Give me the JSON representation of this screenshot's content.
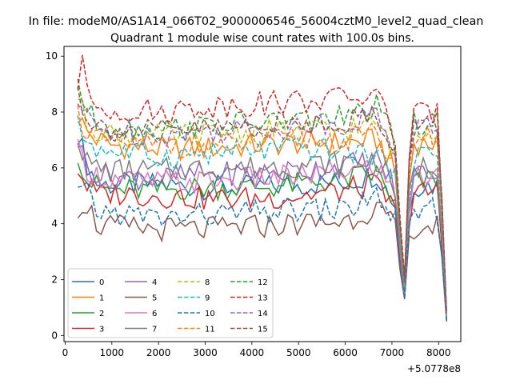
{
  "chart_data": {
    "type": "line",
    "suptitle": "In file: modeM0/AS1A14_066T02_9000006546_56004cztM0_level2_quad_clean",
    "title": "Quadrant 1 module wise count rates with 100.0s bins.",
    "xlabel": "",
    "ylabel": "",
    "x_offset_label": "+5.0778e8",
    "xlim": [
      -25,
      8475
    ],
    "ylim": [
      -0.22,
      10.35
    ],
    "xticks": [
      0,
      1000,
      2000,
      3000,
      4000,
      5000,
      6000,
      7000,
      8000
    ],
    "yticks": [
      0,
      2,
      4,
      6,
      8,
      10
    ],
    "xtick_labels": [
      "0",
      "1000",
      "2000",
      "3000",
      "4000",
      "5000",
      "6000",
      "7000",
      "8000"
    ],
    "ytick_labels": [
      "0",
      "2",
      "4",
      "6",
      "8",
      "10"
    ],
    "grid": false,
    "legend": {
      "placement": "lower-left",
      "ncol": 4
    },
    "x_start": 270,
    "bin_step": 100,
    "series": [
      {
        "name": "0",
        "color": "#1f77b4",
        "dash": "solid",
        "anchors": [
          [
            270,
            7.3
          ],
          [
            450,
            6.2
          ],
          [
            700,
            5.4
          ],
          [
            1000,
            5.4
          ],
          [
            2000,
            5.4
          ],
          [
            3000,
            5.3
          ],
          [
            4000,
            5.3
          ],
          [
            5000,
            5.4
          ],
          [
            6000,
            5.5
          ],
          [
            6700,
            5.8
          ],
          [
            6950,
            5.0
          ],
          [
            7050,
            5.0
          ],
          [
            7200,
            2.5
          ],
          [
            7280,
            1.3
          ],
          [
            7400,
            5.4
          ],
          [
            8000,
            5.4
          ],
          [
            8180,
            0.3
          ]
        ]
      },
      {
        "name": "1",
        "color": "#ff7f0e",
        "dash": "solid",
        "anchors": [
          [
            270,
            7.9
          ],
          [
            450,
            7.3
          ],
          [
            700,
            7.0
          ],
          [
            1000,
            6.8
          ],
          [
            2000,
            6.7
          ],
          [
            3000,
            6.7
          ],
          [
            4000,
            6.8
          ],
          [
            5000,
            6.9
          ],
          [
            6000,
            6.9
          ],
          [
            6700,
            7.0
          ],
          [
            6950,
            6.2
          ],
          [
            7050,
            6.2
          ],
          [
            7200,
            2.9
          ],
          [
            7280,
            1.5
          ],
          [
            7400,
            6.9
          ],
          [
            8000,
            6.9
          ],
          [
            8180,
            0.35
          ]
        ]
      },
      {
        "name": "2",
        "color": "#2ca02c",
        "dash": "solid",
        "anchors": [
          [
            270,
            6.6
          ],
          [
            450,
            5.6
          ],
          [
            700,
            5.3
          ],
          [
            1000,
            5.2
          ],
          [
            2000,
            5.2
          ],
          [
            3000,
            5.3
          ],
          [
            4000,
            5.3
          ],
          [
            5000,
            5.4
          ],
          [
            6000,
            5.6
          ],
          [
            6700,
            5.8
          ],
          [
            6950,
            5.0
          ],
          [
            7050,
            5.0
          ],
          [
            7200,
            2.5
          ],
          [
            7280,
            1.3
          ],
          [
            7400,
            5.4
          ],
          [
            8000,
            5.6
          ],
          [
            8180,
            0.3
          ]
        ]
      },
      {
        "name": "3",
        "color": "#d62728",
        "dash": "solid",
        "anchors": [
          [
            270,
            6.0
          ],
          [
            450,
            5.4
          ],
          [
            700,
            5.0
          ],
          [
            1000,
            5.1
          ],
          [
            2000,
            5.0
          ],
          [
            3000,
            4.9
          ],
          [
            4000,
            4.9
          ],
          [
            5000,
            5.0
          ],
          [
            6000,
            5.2
          ],
          [
            6700,
            5.4
          ],
          [
            6950,
            4.7
          ],
          [
            7050,
            4.7
          ],
          [
            7200,
            2.3
          ],
          [
            7280,
            1.2
          ],
          [
            7400,
            5.0
          ],
          [
            8000,
            5.2
          ],
          [
            8180,
            0.3
          ]
        ]
      },
      {
        "name": "4",
        "color": "#9467bd",
        "dash": "solid",
        "anchors": [
          [
            270,
            7.0
          ],
          [
            450,
            6.1
          ],
          [
            700,
            5.8
          ],
          [
            1000,
            5.7
          ],
          [
            2000,
            5.6
          ],
          [
            3000,
            5.8
          ],
          [
            4000,
            5.8
          ],
          [
            5000,
            5.9
          ],
          [
            6000,
            6.1
          ],
          [
            6700,
            6.3
          ],
          [
            6950,
            5.6
          ],
          [
            7050,
            5.6
          ],
          [
            7200,
            2.7
          ],
          [
            7280,
            1.4
          ],
          [
            7400,
            5.8
          ],
          [
            8000,
            5.9
          ],
          [
            8180,
            0.3
          ]
        ]
      },
      {
        "name": "5",
        "color": "#8c564b",
        "dash": "solid",
        "anchors": [
          [
            270,
            4.6
          ],
          [
            450,
            4.8
          ],
          [
            700,
            3.9
          ],
          [
            1000,
            3.9
          ],
          [
            2000,
            3.8
          ],
          [
            3000,
            3.8
          ],
          [
            4000,
            3.9
          ],
          [
            5000,
            4.0
          ],
          [
            6000,
            4.1
          ],
          [
            6700,
            4.6
          ],
          [
            6950,
            4.0
          ],
          [
            7050,
            4.0
          ],
          [
            7200,
            2.0
          ],
          [
            7280,
            1.2
          ],
          [
            7400,
            3.9
          ],
          [
            8000,
            3.9
          ],
          [
            8180,
            0.3
          ]
        ]
      },
      {
        "name": "6",
        "color": "#e377c2",
        "dash": "solid",
        "anchors": [
          [
            270,
            6.6
          ],
          [
            450,
            6.0
          ],
          [
            700,
            5.7
          ],
          [
            1000,
            5.6
          ],
          [
            2000,
            5.5
          ],
          [
            3000,
            5.5
          ],
          [
            4000,
            5.6
          ],
          [
            5000,
            5.7
          ],
          [
            6000,
            5.9
          ],
          [
            6700,
            6.0
          ],
          [
            6950,
            5.3
          ],
          [
            7050,
            5.3
          ],
          [
            7200,
            2.6
          ],
          [
            7280,
            1.3
          ],
          [
            7400,
            5.6
          ],
          [
            8000,
            5.7
          ],
          [
            8180,
            0.3
          ]
        ]
      },
      {
        "name": "7",
        "color": "#7f7f7f",
        "dash": "solid",
        "anchors": [
          [
            270,
            7.2
          ],
          [
            450,
            6.2
          ],
          [
            700,
            6.0
          ],
          [
            1000,
            5.9
          ],
          [
            2000,
            5.9
          ],
          [
            3000,
            6.0
          ],
          [
            4000,
            6.0
          ],
          [
            5000,
            6.1
          ],
          [
            6000,
            6.2
          ],
          [
            6700,
            6.3
          ],
          [
            6950,
            5.6
          ],
          [
            7050,
            5.6
          ],
          [
            7200,
            2.7
          ],
          [
            7280,
            1.4
          ],
          [
            7400,
            6.0
          ],
          [
            8000,
            6.1
          ],
          [
            8180,
            0.3
          ]
        ]
      },
      {
        "name": "8",
        "color": "#bcbd22",
        "dash": "dashed",
        "anchors": [
          [
            270,
            8.6
          ],
          [
            450,
            7.6
          ],
          [
            700,
            7.4
          ],
          [
            1000,
            7.2
          ],
          [
            2000,
            7.1
          ],
          [
            3000,
            7.2
          ],
          [
            4000,
            7.3
          ],
          [
            5000,
            7.3
          ],
          [
            6000,
            7.4
          ],
          [
            6700,
            7.6
          ],
          [
            6950,
            6.8
          ],
          [
            7050,
            6.8
          ],
          [
            7200,
            3.2
          ],
          [
            7280,
            1.7
          ],
          [
            7400,
            7.4
          ],
          [
            8000,
            7.4
          ],
          [
            8180,
            0.4
          ]
        ]
      },
      {
        "name": "9",
        "color": "#17becf",
        "dash": "dashed",
        "anchors": [
          [
            270,
            7.5
          ],
          [
            450,
            7.0
          ],
          [
            700,
            6.7
          ],
          [
            1000,
            6.6
          ],
          [
            2000,
            6.4
          ],
          [
            3000,
            6.5
          ],
          [
            4000,
            6.6
          ],
          [
            5000,
            6.7
          ],
          [
            6000,
            6.6
          ],
          [
            6700,
            6.5
          ],
          [
            6950,
            6.0
          ],
          [
            7050,
            6.0
          ],
          [
            7200,
            2.9
          ],
          [
            7280,
            1.5
          ],
          [
            7400,
            6.4
          ],
          [
            8000,
            6.5
          ],
          [
            8180,
            0.35
          ]
        ]
      },
      {
        "name": "10",
        "color": "#1f77b4",
        "dash": "dashed",
        "anchors": [
          [
            270,
            5.1
          ],
          [
            450,
            5.1
          ],
          [
            700,
            4.4
          ],
          [
            1000,
            4.4
          ],
          [
            2000,
            4.2
          ],
          [
            3000,
            4.3
          ],
          [
            4000,
            4.4
          ],
          [
            5000,
            4.5
          ],
          [
            6000,
            4.5
          ],
          [
            6700,
            5.0
          ],
          [
            6950,
            4.4
          ],
          [
            7050,
            4.4
          ],
          [
            7200,
            2.2
          ],
          [
            7280,
            1.2
          ],
          [
            7400,
            4.4
          ],
          [
            8000,
            4.5
          ],
          [
            8180,
            0.3
          ]
        ]
      },
      {
        "name": "11",
        "color": "#ff7f0e",
        "dash": "dashed",
        "anchors": [
          [
            270,
            8.0
          ],
          [
            450,
            7.3
          ],
          [
            700,
            7.0
          ],
          [
            1000,
            6.9
          ],
          [
            2000,
            6.8
          ],
          [
            3000,
            6.8
          ],
          [
            4000,
            6.9
          ],
          [
            5000,
            7.0
          ],
          [
            6000,
            7.0
          ],
          [
            6700,
            7.2
          ],
          [
            6950,
            6.4
          ],
          [
            7050,
            6.4
          ],
          [
            7200,
            3.0
          ],
          [
            7280,
            1.6
          ],
          [
            7400,
            7.0
          ],
          [
            8000,
            7.1
          ],
          [
            8180,
            0.35
          ]
        ]
      },
      {
        "name": "12",
        "color": "#2ca02c",
        "dash": "dashed",
        "anchors": [
          [
            270,
            9.2
          ],
          [
            450,
            8.0
          ],
          [
            700,
            7.6
          ],
          [
            1000,
            7.5
          ],
          [
            2000,
            7.4
          ],
          [
            3000,
            7.5
          ],
          [
            4000,
            7.6
          ],
          [
            5000,
            7.7
          ],
          [
            6000,
            7.8
          ],
          [
            6700,
            8.2
          ],
          [
            6950,
            7.2
          ],
          [
            7050,
            7.2
          ],
          [
            7200,
            3.3
          ],
          [
            7280,
            1.8
          ],
          [
            7400,
            7.6
          ],
          [
            8000,
            7.6
          ],
          [
            8180,
            0.4
          ]
        ]
      },
      {
        "name": "13",
        "color": "#d62728",
        "dash": "dashed",
        "anchors": [
          [
            270,
            9.0
          ],
          [
            370,
            9.9
          ],
          [
            450,
            8.6
          ],
          [
            700,
            8.2
          ],
          [
            1000,
            8.1
          ],
          [
            2000,
            8.0
          ],
          [
            3000,
            8.2
          ],
          [
            4000,
            8.3
          ],
          [
            5000,
            8.4
          ],
          [
            6000,
            8.5
          ],
          [
            6700,
            8.6
          ],
          [
            6950,
            7.6
          ],
          [
            7050,
            7.6
          ],
          [
            7200,
            3.5
          ],
          [
            7280,
            1.9
          ],
          [
            7400,
            7.9
          ],
          [
            8000,
            7.9
          ],
          [
            8180,
            0.45
          ]
        ]
      },
      {
        "name": "14",
        "color": "#9467bd",
        "dash": "dashed",
        "anchors": [
          [
            270,
            8.3
          ],
          [
            450,
            7.8
          ],
          [
            700,
            7.4
          ],
          [
            1000,
            7.3
          ],
          [
            2000,
            7.2
          ],
          [
            3000,
            7.3
          ],
          [
            4000,
            7.4
          ],
          [
            5000,
            7.5
          ],
          [
            6000,
            7.6
          ],
          [
            6700,
            7.9
          ],
          [
            6950,
            7.0
          ],
          [
            7050,
            7.0
          ],
          [
            7200,
            3.2
          ],
          [
            7280,
            1.7
          ],
          [
            7400,
            7.4
          ],
          [
            8000,
            7.5
          ],
          [
            8180,
            0.4
          ]
        ]
      },
      {
        "name": "15",
        "color": "#8c564b",
        "dash": "dashed",
        "anchors": [
          [
            270,
            8.8
          ],
          [
            450,
            7.9
          ],
          [
            700,
            7.5
          ],
          [
            1000,
            7.4
          ],
          [
            2000,
            7.3
          ],
          [
            3000,
            7.4
          ],
          [
            4000,
            7.5
          ],
          [
            5000,
            7.6
          ],
          [
            6000,
            7.7
          ],
          [
            6700,
            7.9
          ],
          [
            6950,
            7.0
          ],
          [
            7050,
            7.0
          ],
          [
            7200,
            3.3
          ],
          [
            7280,
            1.7
          ],
          [
            7400,
            7.5
          ],
          [
            8000,
            7.6
          ],
          [
            8180,
            0.4
          ]
        ]
      }
    ]
  }
}
